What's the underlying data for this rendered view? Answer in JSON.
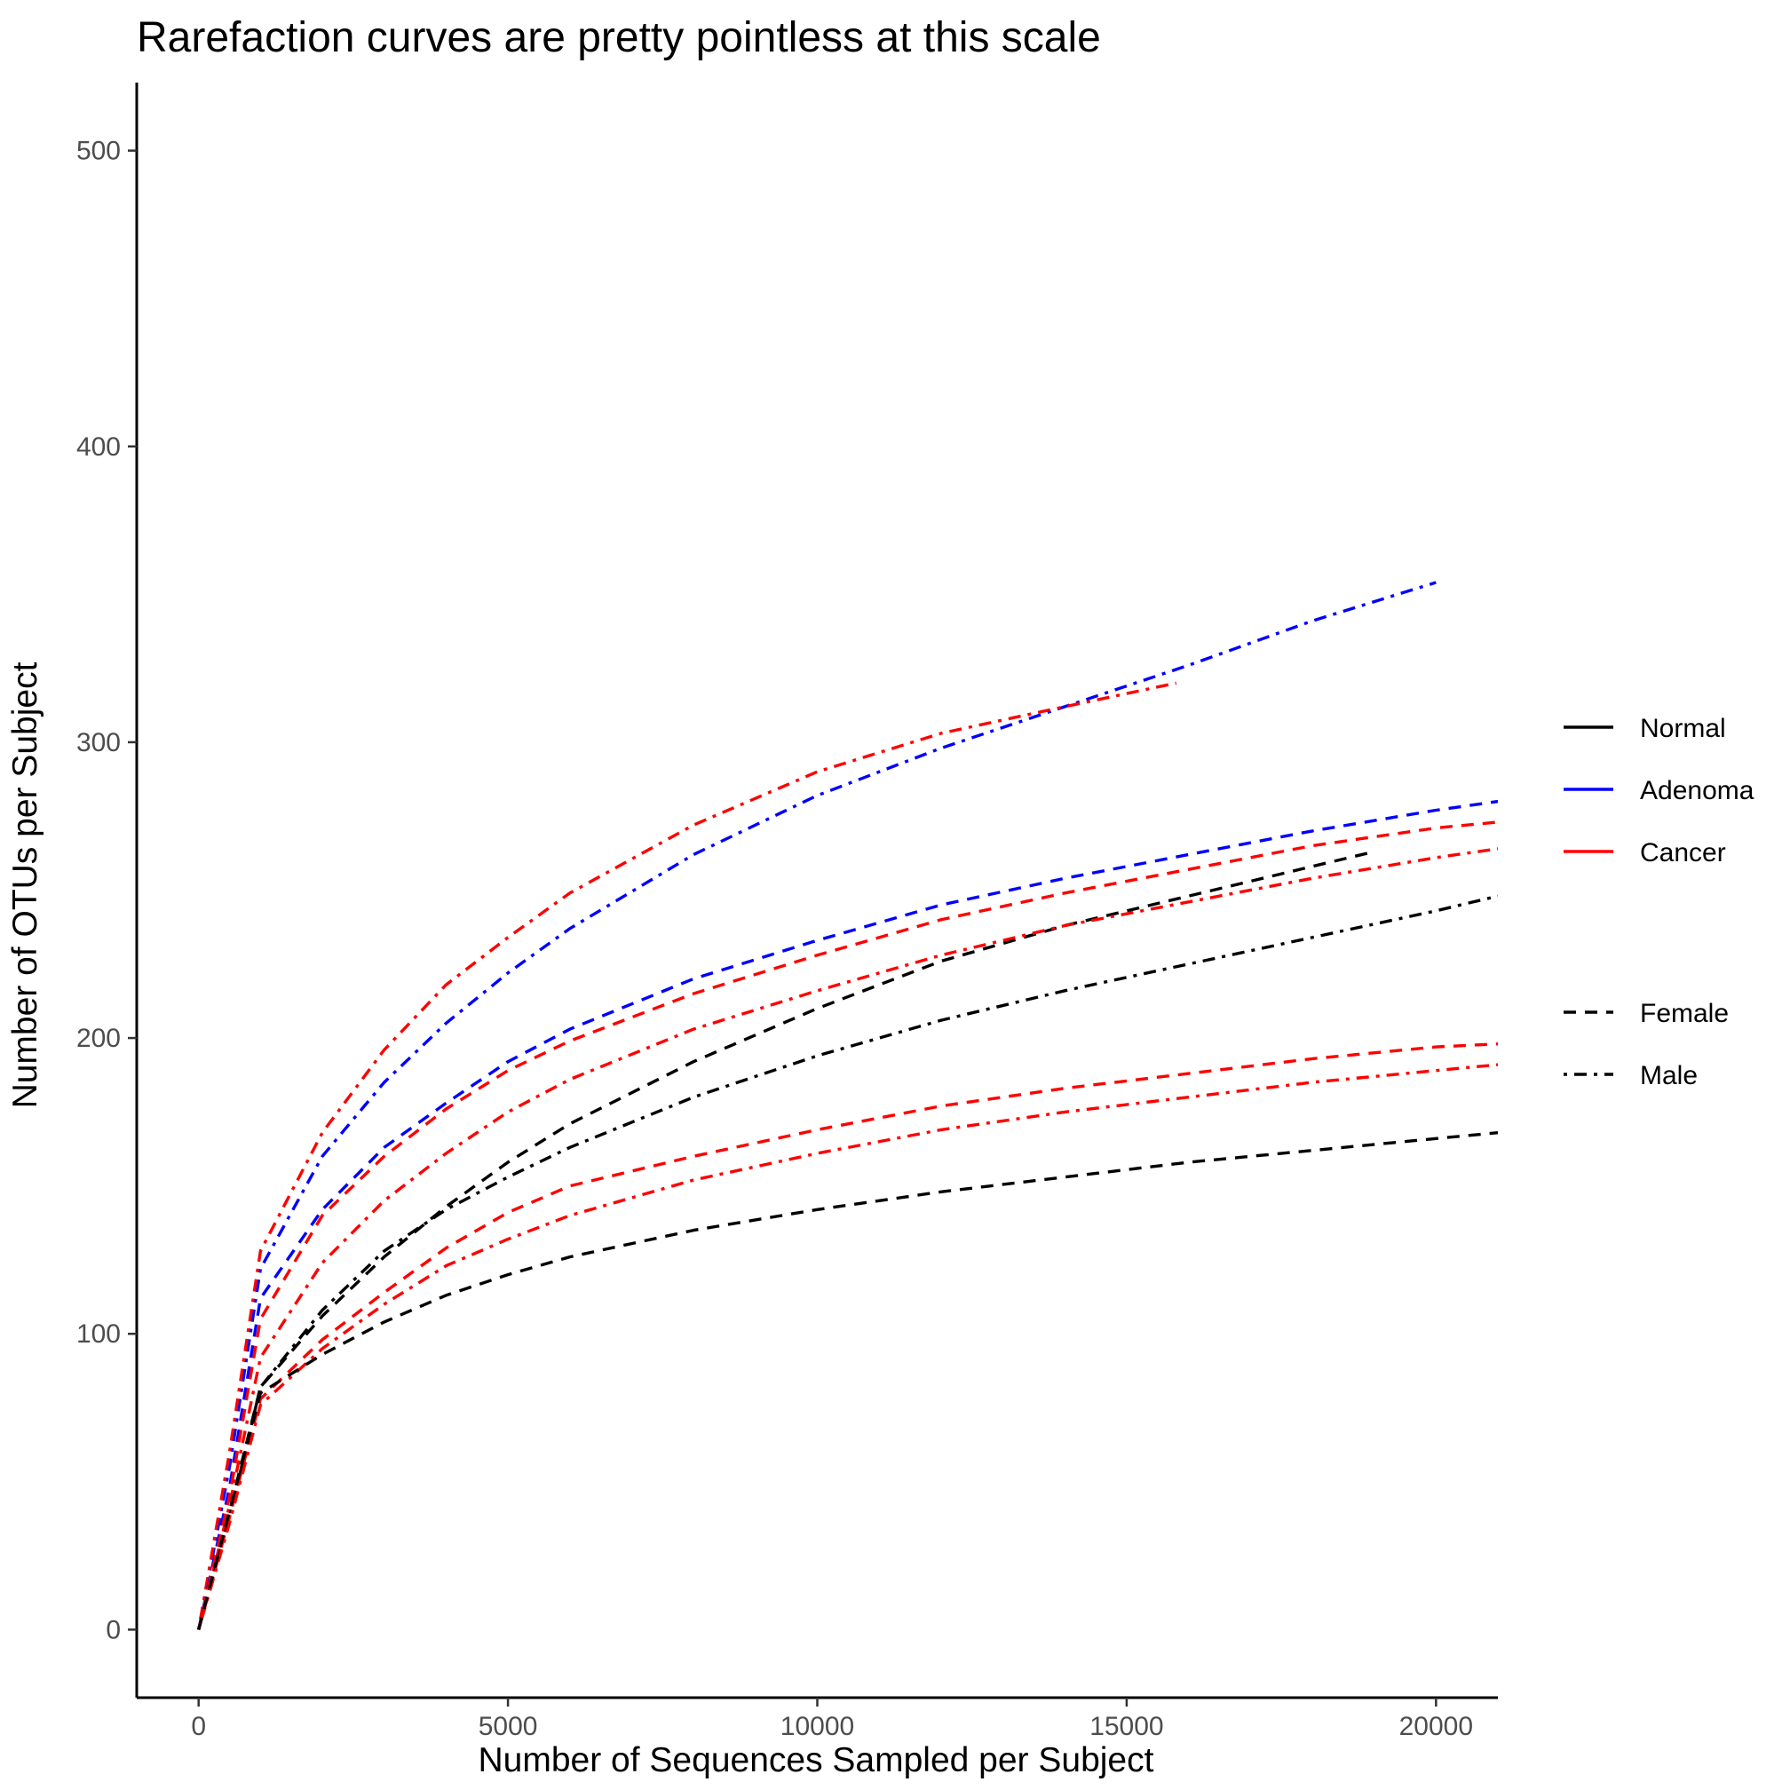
{
  "chart_data": {
    "type": "line",
    "title": "Rarefaction curves are pretty pointless at this scale",
    "xlabel": "Number of Sequences Sampled per Subject",
    "ylabel": "Number of OTUs per Subject",
    "xlim": [
      -1000,
      21000
    ],
    "ylim": [
      -23,
      523
    ],
    "xticks": [
      0,
      5000,
      10000,
      15000,
      20000
    ],
    "yticks": [
      0,
      100,
      200,
      300,
      400,
      500
    ],
    "grid": false,
    "legend": {
      "placement": "right",
      "color_entries": [
        {
          "label": "Normal",
          "color": "#000000"
        },
        {
          "label": "Adenoma",
          "color": "#0000ff"
        },
        {
          "label": "Cancer",
          "color": "#ff0000"
        }
      ],
      "linetype_entries": [
        {
          "label": "Female",
          "linetype": "dashed"
        },
        {
          "label": "Male",
          "linetype": "dotdash"
        }
      ]
    },
    "series": [
      {
        "group": "Adenoma",
        "sex": "Male",
        "color": "#0000ff",
        "linetype": "dotdash",
        "x": [
          0,
          500,
          1000,
          2000,
          3000,
          4000,
          5000,
          6000,
          8000,
          10000,
          12000,
          14000,
          16000,
          18000,
          20000
        ],
        "y": [
          0,
          55,
          122,
          160,
          185,
          205,
          222,
          237,
          262,
          282,
          298,
          312,
          326,
          341,
          354
        ]
      },
      {
        "group": "Cancer",
        "sex": "Male",
        "color": "#ff0000",
        "linetype": "dotdash",
        "x": [
          0,
          500,
          1000,
          2000,
          3000,
          4000,
          5000,
          6000,
          8000,
          10000,
          12000,
          14000,
          15800
        ],
        "y": [
          0,
          60,
          128,
          168,
          196,
          218,
          234,
          249,
          272,
          290,
          303,
          312,
          320
        ]
      },
      {
        "group": "Adenoma",
        "sex": "Female",
        "color": "#0000ff",
        "linetype": "dashed",
        "x": [
          0,
          500,
          1000,
          2000,
          3000,
          4000,
          5000,
          6000,
          8000,
          10000,
          12000,
          14000,
          16000,
          18000,
          20000,
          21000
        ],
        "y": [
          0,
          48,
          112,
          142,
          163,
          178,
          192,
          203,
          220,
          233,
          245,
          254,
          262,
          270,
          277,
          280
        ]
      },
      {
        "group": "Cancer",
        "sex": "Female",
        "color": "#ff0000",
        "linetype": "dashed",
        "x": [
          0,
          500,
          1000,
          2000,
          3000,
          4000,
          5000,
          6000,
          8000,
          10000,
          12000,
          14000,
          16000,
          18000,
          20000,
          21000
        ],
        "y": [
          0,
          45,
          105,
          140,
          160,
          176,
          189,
          199,
          215,
          228,
          240,
          249,
          257,
          265,
          271,
          273
        ]
      },
      {
        "group": "Normal",
        "sex": "Female",
        "color": "#000000",
        "linetype": "dashed",
        "x": [
          0,
          500,
          1000,
          2000,
          3000,
          4000,
          5000,
          6000,
          8000,
          10000,
          12000,
          14000,
          16000,
          18000,
          19000
        ],
        "y": [
          0,
          40,
          82,
          106,
          126,
          143,
          158,
          171,
          192,
          210,
          226,
          238,
          248,
          258,
          263
        ]
      },
      {
        "group": "Cancer",
        "sex": "Male",
        "color": "#ff0000",
        "linetype": "dotdash",
        "x": [
          0,
          500,
          1000,
          2000,
          3000,
          4000,
          5000,
          6000,
          8000,
          10000,
          12000,
          14000,
          16000,
          18000,
          20000,
          21000
        ],
        "y": [
          0,
          42,
          92,
          124,
          145,
          161,
          175,
          186,
          203,
          216,
          228,
          238,
          246,
          254,
          261,
          264
        ]
      },
      {
        "group": "Normal",
        "sex": "Male",
        "color": "#000000",
        "linetype": "dotdash",
        "x": [
          0,
          500,
          1000,
          2000,
          3000,
          4000,
          5000,
          6000,
          8000,
          10000,
          12000,
          14000,
          16000,
          18000,
          20000,
          21000
        ],
        "y": [
          0,
          38,
          82,
          108,
          128,
          142,
          153,
          163,
          180,
          194,
          206,
          216,
          225,
          234,
          243,
          248
        ]
      },
      {
        "group": "Cancer",
        "sex": "Female",
        "color": "#ff0000",
        "linetype": "dashed",
        "x": [
          0,
          500,
          1000,
          2000,
          3000,
          4000,
          5000,
          6000,
          8000,
          10000,
          12000,
          14000,
          16000,
          18000,
          20000,
          21000
        ],
        "y": [
          0,
          38,
          78,
          98,
          114,
          129,
          141,
          150,
          160,
          169,
          177,
          183,
          188,
          193,
          197,
          198
        ]
      },
      {
        "group": "Cancer",
        "sex": "Male",
        "color": "#ff0000",
        "linetype": "dotdash",
        "x": [
          0,
          500,
          1000,
          2000,
          3000,
          4000,
          5000,
          6000,
          8000,
          10000,
          12000,
          14000,
          16000,
          18000,
          20000,
          21000
        ],
        "y": [
          0,
          36,
          76,
          95,
          110,
          123,
          132,
          140,
          152,
          161,
          169,
          175,
          180,
          185,
          189,
          191
        ]
      },
      {
        "group": "Normal",
        "sex": "Female",
        "color": "#000000",
        "linetype": "dashed",
        "x": [
          0,
          500,
          1000,
          2000,
          3000,
          4000,
          5000,
          6000,
          8000,
          10000,
          12000,
          14000,
          16000,
          18000,
          20000,
          21000
        ],
        "y": [
          0,
          40,
          80,
          93,
          104,
          113,
          120,
          126,
          135,
          142,
          148,
          153,
          158,
          162,
          166,
          168
        ]
      }
    ]
  }
}
